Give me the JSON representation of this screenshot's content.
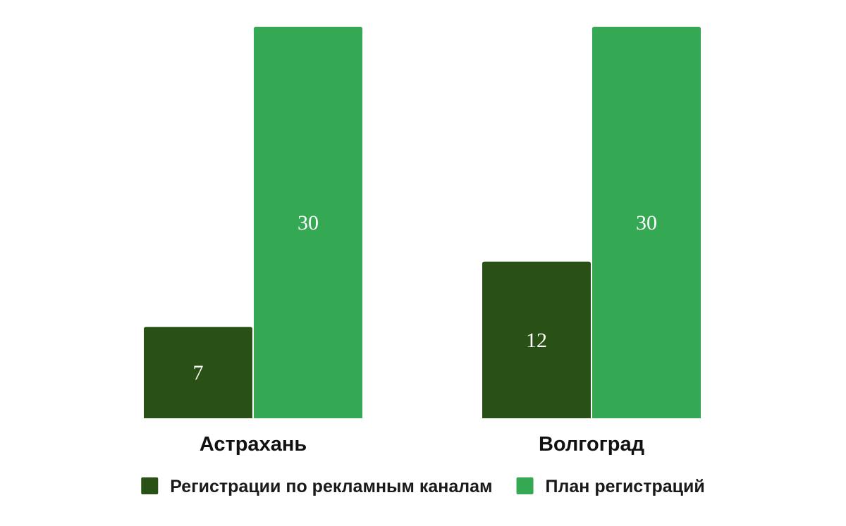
{
  "chart_data": {
    "type": "bar",
    "categories": [
      "Астрахань",
      "Волгоград"
    ],
    "series": [
      {
        "name": "Регистрации по рекламным каналам",
        "values": [
          7,
          12
        ],
        "color": "#295015"
      },
      {
        "name": "План регистраций",
        "values": [
          30,
          30
        ],
        "color": "#34a853"
      }
    ],
    "ylim": [
      0,
      30
    ],
    "grid": false,
    "legend_position": "bottom",
    "data_labels": true
  }
}
